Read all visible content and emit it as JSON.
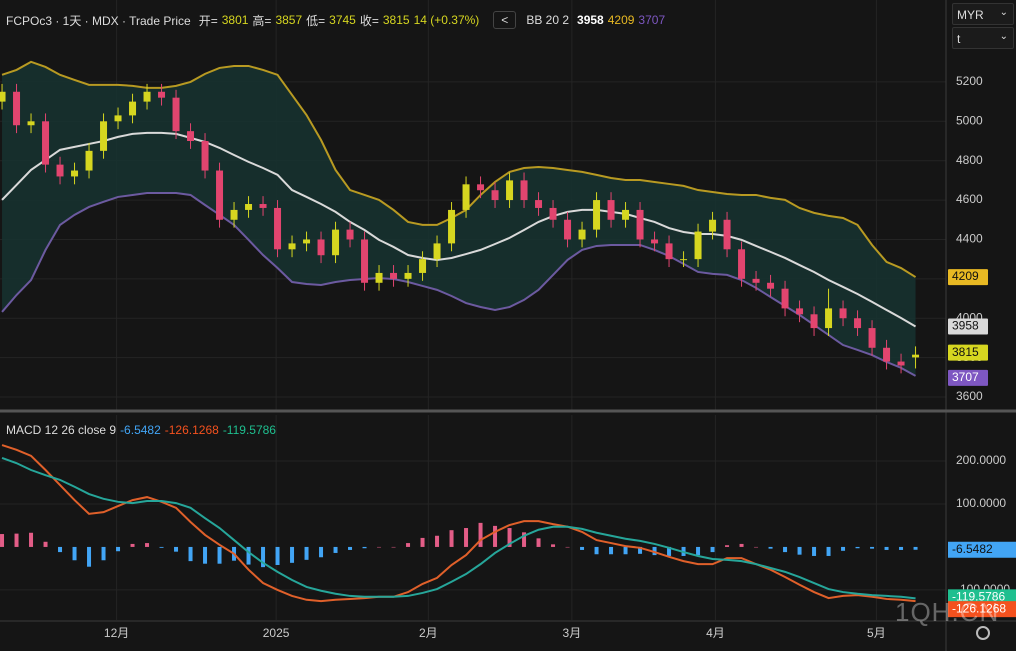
{
  "chart_data": [
    {
      "type": "candlestick",
      "title": "FCPOc3 · 1天 · MDX · Trade Price",
      "ohlc_labels": [
        "开=",
        "高=",
        "低=",
        "收="
      ],
      "change": "14 (+0.37%)",
      "collapse_button": "<",
      "bands_title": "BB 20 2",
      "up_color": "#d6d620",
      "down_color": "#e2456f",
      "open": [
        5100,
        5150,
        4980,
        5000,
        4780,
        4720,
        4750,
        4850,
        5000,
        5030,
        5100,
        5150,
        5120,
        4950,
        4900,
        4750,
        4500,
        4550,
        4580,
        4560,
        4350,
        4380,
        4400,
        4320,
        4450,
        4400,
        4180,
        4230,
        4200,
        4230,
        4300,
        4380,
        4550,
        4680,
        4650,
        4600,
        4700,
        4600,
        4560,
        4500,
        4400,
        4450,
        4600,
        4500,
        4550,
        4400,
        4380,
        4300,
        4300,
        4440,
        4500,
        4350,
        4200,
        4180,
        4150,
        4050,
        4020,
        3950,
        4050,
        4000,
        3950,
        3850,
        3780,
        3801
      ],
      "high": [
        5190,
        5190,
        5040,
        5040,
        4820,
        4790,
        4890,
        5040,
        5070,
        5140,
        5190,
        5190,
        5160,
        4990,
        4940,
        4790,
        4590,
        4620,
        4620,
        4600,
        4420,
        4440,
        4440,
        4490,
        4490,
        4440,
        4270,
        4270,
        4270,
        4340,
        4420,
        4590,
        4720,
        4720,
        4690,
        4740,
        4740,
        4640,
        4600,
        4540,
        4490,
        4640,
        4640,
        4590,
        4590,
        4440,
        4420,
        4340,
        4480,
        4540,
        4540,
        4390,
        4240,
        4220,
        4190,
        4090,
        4060,
        4150,
        4090,
        4040,
        3990,
        3890,
        3820,
        3857
      ],
      "low": [
        5060,
        4940,
        4940,
        4740,
        4680,
        4680,
        4710,
        4810,
        4960,
        4990,
        5060,
        5080,
        4910,
        4860,
        4710,
        4460,
        4460,
        4510,
        4520,
        4310,
        4310,
        4340,
        4280,
        4280,
        4360,
        4140,
        4140,
        4160,
        4160,
        4190,
        4260,
        4340,
        4510,
        4610,
        4560,
        4560,
        4560,
        4520,
        4460,
        4360,
        4360,
        4410,
        4460,
        4460,
        4360,
        4340,
        4260,
        4260,
        4260,
        4400,
        4310,
        4160,
        4140,
        4110,
        4010,
        3980,
        3910,
        3910,
        3960,
        3910,
        3810,
        3740,
        3720,
        3745
      ],
      "close": [
        5150,
        4980,
        5000,
        4780,
        4720,
        4750,
        4850,
        5000,
        5030,
        5100,
        5150,
        5120,
        4950,
        4900,
        4750,
        4500,
        4550,
        4580,
        4560,
        4350,
        4380,
        4400,
        4320,
        4450,
        4400,
        4180,
        4230,
        4200,
        4230,
        4300,
        4380,
        4550,
        4680,
        4650,
        4600,
        4700,
        4600,
        4560,
        4500,
        4400,
        4450,
        4600,
        4500,
        4550,
        4400,
        4380,
        4300,
        4300,
        4440,
        4500,
        4350,
        4200,
        4180,
        4150,
        4050,
        4020,
        3950,
        4050,
        4000,
        3950,
        3850,
        3780,
        3760,
        3815
      ],
      "bands": [
        {
          "color": "#d9d9d9",
          "badge_text": "#111111",
          "values": [
            4601,
            4677,
            4753,
            4804,
            4855,
            4870,
            4885,
            4900,
            4921,
            4936,
            4941,
            4941,
            4936,
            4916,
            4895,
            4865,
            4829,
            4794,
            4763,
            4728,
            4651,
            4616,
            4580,
            4540,
            4489,
            4448,
            4398,
            4362,
            4321,
            4306,
            4296,
            4306,
            4326,
            4347,
            4377,
            4408,
            4448,
            4489,
            4519,
            4540,
            4550,
            4550,
            4540,
            4530,
            4509,
            4489,
            4458,
            4438,
            4428,
            4428,
            4418,
            4398,
            4367,
            4337,
            4306,
            4270,
            4235,
            4194,
            4159,
            4123,
            4083,
            4042,
            4001,
            3958
          ]
        },
        {
          "color": "#b89a22",
          "badge": "#e8b923",
          "badge_text": "#111111",
          "values": [
            5236,
            5261,
            5302,
            5276,
            5236,
            5210,
            5185,
            5185,
            5185,
            5180,
            5170,
            5170,
            5180,
            5200,
            5241,
            5271,
            5281,
            5281,
            5261,
            5236,
            5134,
            5032,
            4905,
            4753,
            4651,
            4626,
            4601,
            4550,
            4489,
            4474,
            4474,
            4509,
            4550,
            4626,
            4692,
            4743,
            4763,
            4768,
            4763,
            4753,
            4743,
            4728,
            4712,
            4702,
            4702,
            4692,
            4682,
            4672,
            4651,
            4641,
            4631,
            4626,
            4626,
            4611,
            4601,
            4560,
            4535,
            4520,
            4509,
            4474,
            4372,
            4286,
            4255,
            4209
          ]
        },
        {
          "color": "#6c5aa0",
          "badge": "#7e57c2",
          "badge_text": "#ffffff",
          "values": [
            4032,
            4118,
            4194,
            4347,
            4474,
            4525,
            4565,
            4591,
            4616,
            4626,
            4636,
            4636,
            4636,
            4626,
            4575,
            4525,
            4474,
            4398,
            4321,
            4255,
            4184,
            4174,
            4169,
            4184,
            4194,
            4199,
            4204,
            4199,
            4184,
            4164,
            4144,
            4113,
            4077,
            4057,
            4042,
            4057,
            4093,
            4144,
            4220,
            4296,
            4347,
            4367,
            4372,
            4372,
            4372,
            4347,
            4316,
            4276,
            4235,
            4225,
            4220,
            4194,
            4154,
            4108,
            4062,
            4017,
            3966,
            3915,
            3864,
            3839,
            3813,
            3778,
            3748,
            3707
          ]
        }
      ],
      "band_fill": "#163230",
      "xlim": [
        -0.14,
        65.1
      ],
      "xticks": [
        {
          "value": 7.9,
          "label": "12月"
        },
        {
          "value": 18.9,
          "label": "2025"
        },
        {
          "value": 29.4,
          "label": "2月"
        },
        {
          "value": 39.3,
          "label": "3月"
        },
        {
          "value": 49.2,
          "label": "4月"
        },
        {
          "value": 60.3,
          "label": "5月"
        }
      ],
      "ylim": [
        3534,
        5616
      ],
      "yticks": [
        3600,
        3800,
        4000,
        4200,
        4400,
        4600,
        4800,
        5000,
        5200
      ],
      "grid": true
    },
    {
      "type": "macd",
      "title": "MACD 12 26 close 9",
      "histogram": {
        "color_up": "#e35d87",
        "color_down": "#42a5f5",
        "values": [
          30,
          31,
          33,
          12,
          -12,
          -31,
          -46,
          -31,
          -10,
          7,
          9,
          -2,
          -11,
          -33,
          -39,
          -39,
          -32,
          -41,
          -47,
          -42,
          -37,
          -30,
          -24,
          -14,
          -7,
          -3,
          0,
          0,
          9,
          21,
          26,
          39,
          44,
          56,
          49,
          44,
          34,
          20,
          6,
          0,
          -7,
          -17,
          -17,
          -17,
          -16,
          -19,
          -21,
          -21,
          -19,
          -12,
          4,
          7,
          0,
          -4,
          -12,
          -18,
          -21,
          -21,
          -9,
          -3,
          -4,
          -7,
          -7,
          -6.5482
        ]
      },
      "series": [
        {
          "color": "#e0602a",
          "badge": "#f4511e",
          "values": [
            237,
            226,
            212,
            179,
            144,
            109,
            77,
            81,
            95,
            109,
            116,
            105,
            91,
            58,
            28,
            5,
            -16,
            -53,
            -84,
            -100,
            -114,
            -123,
            -126,
            -123,
            -121,
            -119,
            -116,
            -116,
            -105,
            -86,
            -72,
            -42,
            -19,
            16,
            35,
            51,
            60,
            60,
            53,
            47,
            35,
            16,
            9,
            2,
            -2,
            -12,
            -23,
            -33,
            -40,
            -40,
            -26,
            -26,
            -40,
            -53,
            -70,
            -88,
            -105,
            -119,
            -114,
            -112,
            -116,
            -121,
            -123,
            -126.1268
          ]
        },
        {
          "color": "#26a69a",
          "badge": "#1fbf8f",
          "values": [
            207,
            195,
            179,
            167,
            156,
            140,
            123,
            112,
            105,
            102,
            107,
            107,
            102,
            91,
            67,
            44,
            16,
            -12,
            -37,
            -58,
            -77,
            -93,
            -102,
            -109,
            -114,
            -116,
            -116,
            -116,
            -114,
            -107,
            -98,
            -81,
            -63,
            -40,
            -14,
            7,
            26,
            40,
            47,
            47,
            42,
            33,
            26,
            19,
            14,
            7,
            -2,
            -12,
            -21,
            -28,
            -30,
            -33,
            -40,
            -49,
            -58,
            -70,
            -84,
            -98,
            -105,
            -109,
            -112,
            -114,
            -116,
            -119.5786
          ]
        }
      ],
      "ylim": [
        -170,
        307
      ],
      "yticks": [
        {
          "value": 200,
          "label": "200.0000"
        },
        {
          "value": 100,
          "label": "100.0000"
        },
        {
          "value": -100,
          "label": "-100.0000"
        }
      ],
      "grid": true
    }
  ],
  "controls": {
    "currency": "MYR",
    "field": "t"
  },
  "watermark": "1QH.CN"
}
